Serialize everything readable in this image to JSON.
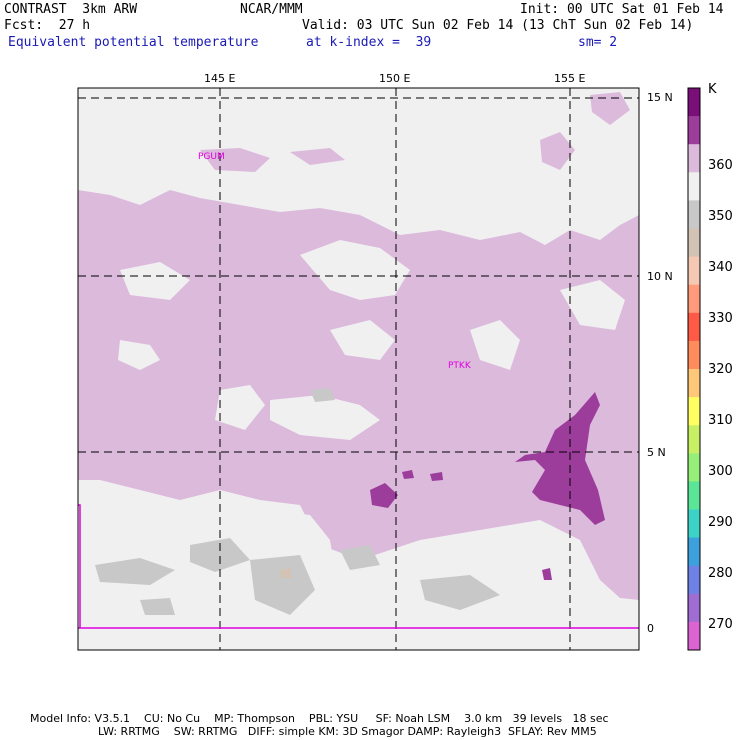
{
  "header": {
    "model": "CONTRAST  3km ARW",
    "org": "NCAR/MMM",
    "init": "Init: 00 UTC Sat 01 Feb 14",
    "fcst": "Fcst:  27 h",
    "valid": "Valid: 03 UTC Sun 02 Feb 14 (13 ChT Sun 02 Feb 14)",
    "field": "Equivalent potential temperature",
    "level": "at k-index =  39",
    "smooth": "sm= 2"
  },
  "map": {
    "lon_labels": [
      "145 E",
      "150 E",
      "155 E"
    ],
    "lat_labels": [
      "15 N",
      "10 N",
      "5 N",
      "0"
    ],
    "stations": [
      "PGUM",
      "PTKK"
    ]
  },
  "colorbar": {
    "unit": "K",
    "labels": [
      "360",
      "350",
      "340",
      "330",
      "320",
      "310",
      "300",
      "290",
      "280",
      "270"
    ],
    "colors": [
      "#7a0f7a",
      "#9c3d9c",
      "#dcbadc",
      "#f0f0f0",
      "#c8c8c8",
      "#d2c3b4",
      "#f5c8b4",
      "#ff9a7a",
      "#ff5a46",
      "#ff8c5a",
      "#ffc878",
      "#ffff64",
      "#c8f064",
      "#96f078",
      "#5ae696",
      "#3cd2c8",
      "#3ca0dc",
      "#6e82e6",
      "#a06ed2",
      "#dc64d2"
    ]
  },
  "footer": {
    "line1": "Model Info: V3.5.1    CU: No Cu    MP: Thompson    PBL: YSU     SF: Noah LSM    3.0 km   39 levels   18 sec",
    "line2": "LW: RRTMG    SW: RRTMG   DIFF: simple KM: 3D Smagor DAMP: Rayleigh3  SFLAY: Rev MM5"
  }
}
